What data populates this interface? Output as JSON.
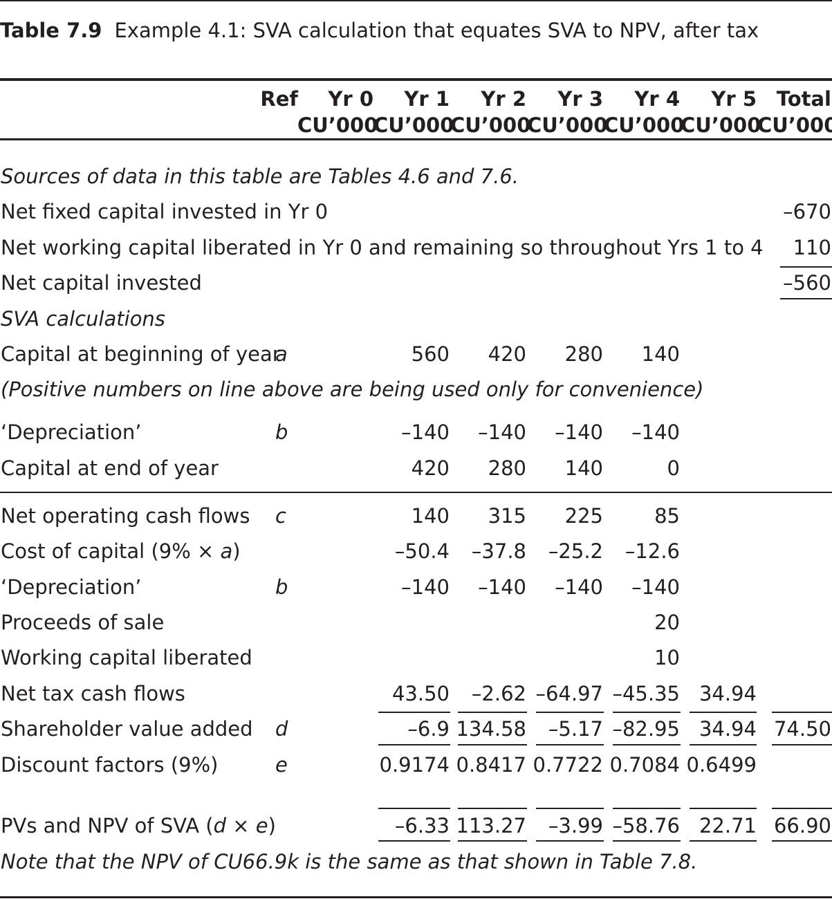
{
  "table": {
    "number": "Table 7.9",
    "caption": "Example 4.1: SVA calculation that equates SVA to NPV, after tax",
    "header": {
      "ref": "Ref",
      "columns": [
        {
          "year": "Yr 0",
          "unit": "CU’000"
        },
        {
          "year": "Yr 1",
          "unit": "CU’000"
        },
        {
          "year": "Yr 2",
          "unit": "CU’000"
        },
        {
          "year": "Yr 3",
          "unit": "CU’000"
        },
        {
          "year": "Yr 4",
          "unit": "CU’000"
        },
        {
          "year": "Yr 5",
          "unit": "CU’000"
        },
        {
          "year": "Total",
          "unit": "CU’000"
        }
      ]
    },
    "sources_note": "Sources of data in this table are Tables 4.6 and 7.6.",
    "capital_rows": [
      {
        "label": "Net fixed capital invested in Yr 0",
        "total": "–670"
      },
      {
        "label": "Net working capital liberated in Yr 0 and remaining so throughout Yrs 1 to 4",
        "total": "110"
      },
      {
        "label": "Net capital invested",
        "total": "–560"
      }
    ],
    "sva_heading": "SVA calculations",
    "capital_begin": {
      "label": "Capital at beginning of year",
      "ref": "a",
      "values": [
        "",
        "560",
        "420",
        "280",
        "140",
        "",
        ""
      ]
    },
    "positive_note": "(Positive numbers on line above are being used only for convenience)",
    "depreciation_1": {
      "label": "‘Depreciation’",
      "ref": "b",
      "values": [
        "",
        "–140",
        "–140",
        "–140",
        "–140",
        "",
        ""
      ]
    },
    "capital_end": {
      "label": "Capital at end of year",
      "ref": "",
      "values": [
        "",
        "420",
        "280",
        "140",
        "0",
        "",
        ""
      ]
    },
    "operating": {
      "label": "Net operating cash flows",
      "ref": "c",
      "values": [
        "",
        "140",
        "315",
        "225",
        "85",
        "",
        ""
      ]
    },
    "cost_of_capital": {
      "label_prefix": "Cost of capital (9% × ",
      "label_var": "a",
      "label_suffix": ")",
      "ref": "",
      "values": [
        "",
        "–50.4",
        "–37.8",
        "–25.2",
        "–12.6",
        "",
        ""
      ]
    },
    "depreciation_2": {
      "label": "‘Depreciation’",
      "ref": "b",
      "values": [
        "",
        "–140",
        "–140",
        "–140",
        "–140",
        "",
        ""
      ]
    },
    "proceeds": {
      "label": "Proceeds of sale",
      "ref": "",
      "values": [
        "",
        "",
        "",
        "",
        "20",
        "",
        ""
      ]
    },
    "wc_liberated": {
      "label": "Working capital liberated",
      "ref": "",
      "values": [
        "",
        "",
        "",
        "",
        "10",
        "",
        ""
      ]
    },
    "tax": {
      "label": "Net tax cash flows",
      "ref": "",
      "values": [
        "",
        "43.50",
        "–2.62",
        "–64.97",
        "–45.35",
        "34.94",
        ""
      ]
    },
    "sva": {
      "label": "Shareholder value added",
      "ref": "d",
      "values": [
        "",
        "–6.9",
        "134.58",
        "–5.17",
        "–82.95",
        "34.94",
        "74.50"
      ]
    },
    "discount": {
      "label": "Discount factors (9%)",
      "ref": "e",
      "values": [
        "",
        "0.9174",
        "0.8417",
        "0.7722",
        "0.7084",
        "0.6499",
        ""
      ]
    },
    "pv": {
      "label_prefix": "PVs and NPV of SVA (",
      "label_var1": "d",
      "label_mid": " × ",
      "label_var2": "e",
      "label_suffix": ")",
      "ref": "",
      "values": [
        "",
        "–6.33",
        "113.27",
        "–3.99",
        "–58.76",
        "22.71",
        "66.90"
      ]
    },
    "footnote": "Note that the NPV of CU66.9k is the same as that shown in Table 7.8."
  }
}
